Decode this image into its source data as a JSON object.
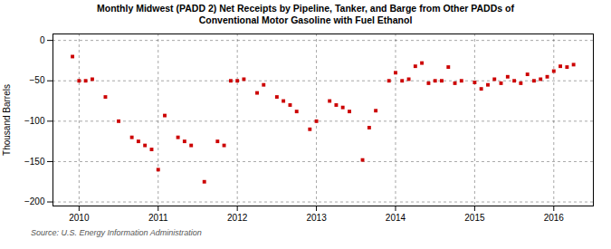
{
  "chart_data": {
    "type": "scatter",
    "title": "Monthly Midwest (PADD 2) Net Receipts by Pipeline, Tanker, and Barge from Other PADDs of\nConventional Motor Gasoline with Fuel Ethanol",
    "ylabel": "Thousand Barrels",
    "source": "Source: U.S. Energy Information Administration",
    "color": "#cc0000",
    "marker": "square",
    "grid": true,
    "xlim": [
      2009.67,
      2016.5
    ],
    "xticks": [
      2010,
      2011,
      2012,
      2013,
      2014,
      2015,
      2016
    ],
    "ylim": [
      -205,
      8
    ],
    "yticks": [
      0,
      -50,
      -100,
      -150,
      -200
    ],
    "x": [
      2009.917,
      2010.0,
      2010.083,
      2010.167,
      2010.333,
      2010.5,
      2010.667,
      2010.75,
      2010.833,
      2010.917,
      2011.0,
      2011.083,
      2011.25,
      2011.333,
      2011.417,
      2011.583,
      2011.75,
      2011.833,
      2011.917,
      2012.0,
      2012.083,
      2012.25,
      2012.333,
      2012.5,
      2012.583,
      2012.667,
      2012.75,
      2012.917,
      2013.0,
      2013.167,
      2013.25,
      2013.333,
      2013.417,
      2013.583,
      2013.667,
      2013.75,
      2013.917,
      2014.0,
      2014.083,
      2014.167,
      2014.25,
      2014.333,
      2014.417,
      2014.5,
      2014.583,
      2014.667,
      2014.75,
      2014.833,
      2015.0,
      2015.083,
      2015.167,
      2015.25,
      2015.333,
      2015.417,
      2015.5,
      2015.583,
      2015.667,
      2015.75,
      2015.833,
      2015.917,
      2016.0,
      2016.083,
      2016.167,
      2016.25
    ],
    "values": [
      -20,
      -50,
      -50,
      -48,
      -70,
      -100,
      -120,
      -125,
      -130,
      -135,
      -160,
      -93,
      -120,
      -125,
      -130,
      -175,
      -125,
      -130,
      -50,
      -50,
      -48,
      -65,
      -55,
      -70,
      -75,
      -80,
      -88,
      -110,
      -100,
      -75,
      -80,
      -83,
      -88,
      -148,
      -108,
      -87,
      -50,
      -40,
      -50,
      -48,
      -32,
      -28,
      -53,
      -50,
      -50,
      -33,
      -53,
      -50,
      -52,
      -60,
      -55,
      -48,
      -53,
      -45,
      -50,
      -53,
      -42,
      -50,
      -48,
      -45,
      -38,
      -32,
      -33,
      -30
    ]
  }
}
